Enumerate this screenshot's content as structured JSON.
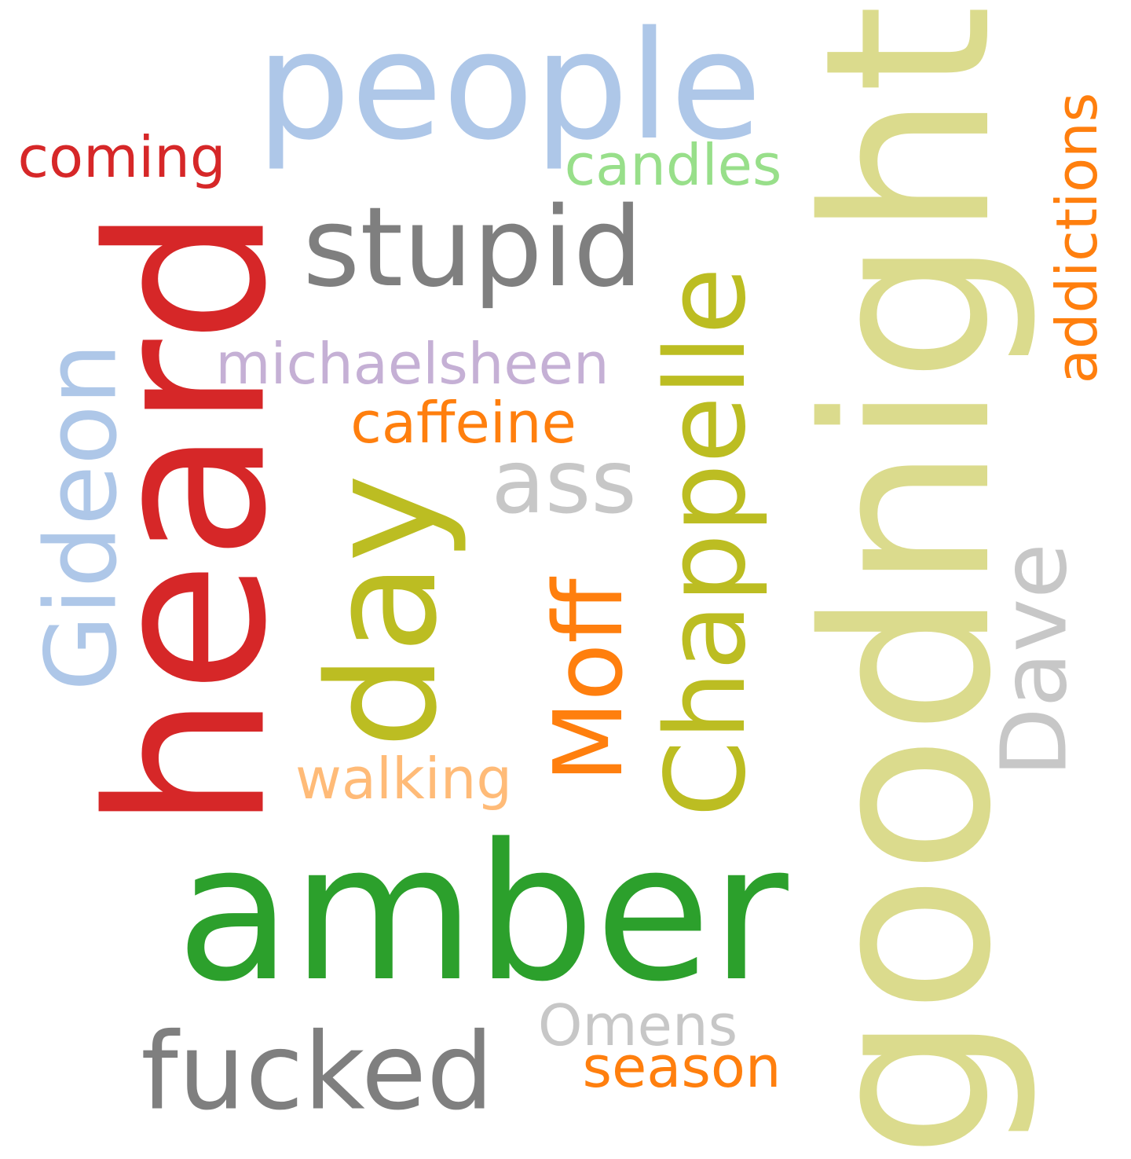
{
  "words": [
    {
      "key": "goodnight",
      "text": "goodnight",
      "color": "#dbdb8d",
      "orientation": "vertical"
    },
    {
      "key": "amber",
      "text": "amber",
      "color": "#2ca02c",
      "orientation": "horizontal"
    },
    {
      "key": "heard",
      "text": "heard",
      "color": "#d62728",
      "orientation": "vertical"
    },
    {
      "key": "people",
      "text": "people",
      "color": "#aec7e8",
      "orientation": "horizontal"
    },
    {
      "key": "day",
      "text": "day",
      "color": "#bcbd22",
      "orientation": "vertical"
    },
    {
      "key": "Chappelle",
      "text": "Chappelle",
      "color": "#bcbd22",
      "orientation": "vertical"
    },
    {
      "key": "stupid",
      "text": "stupid",
      "color": "#7f7f7f",
      "orientation": "horizontal"
    },
    {
      "key": "fucked",
      "text": "fucked",
      "color": "#7f7f7f",
      "orientation": "horizontal"
    },
    {
      "key": "Gideon",
      "text": "Gideon",
      "color": "#aec7e8",
      "orientation": "vertical"
    },
    {
      "key": "Moff",
      "text": "Moff",
      "color": "#ff7f0e",
      "orientation": "vertical"
    },
    {
      "key": "Dave",
      "text": "Dave",
      "color": "#c7c7c7",
      "orientation": "vertical"
    },
    {
      "key": "ass",
      "text": "ass",
      "color": "#c7c7c7",
      "orientation": "horizontal"
    },
    {
      "key": "addictions",
      "text": "addictions",
      "color": "#ff7f0e",
      "orientation": "vertical"
    },
    {
      "key": "michaelsheen",
      "text": "michaelsheen",
      "color": "#c5b0d5",
      "orientation": "horizontal"
    },
    {
      "key": "coming",
      "text": "coming",
      "color": "#d62728",
      "orientation": "horizontal"
    },
    {
      "key": "caffeine",
      "text": "caffeine",
      "color": "#ff7f0e",
      "orientation": "horizontal"
    },
    {
      "key": "candles",
      "text": "candles",
      "color": "#98df8a",
      "orientation": "horizontal"
    },
    {
      "key": "walking",
      "text": "walking",
      "color": "#ffbb78",
      "orientation": "horizontal"
    },
    {
      "key": "Omens",
      "text": "Omens",
      "color": "#c7c7c7",
      "orientation": "horizontal"
    },
    {
      "key": "season",
      "text": "season",
      "color": "#ff7f0e",
      "orientation": "horizontal"
    }
  ]
}
